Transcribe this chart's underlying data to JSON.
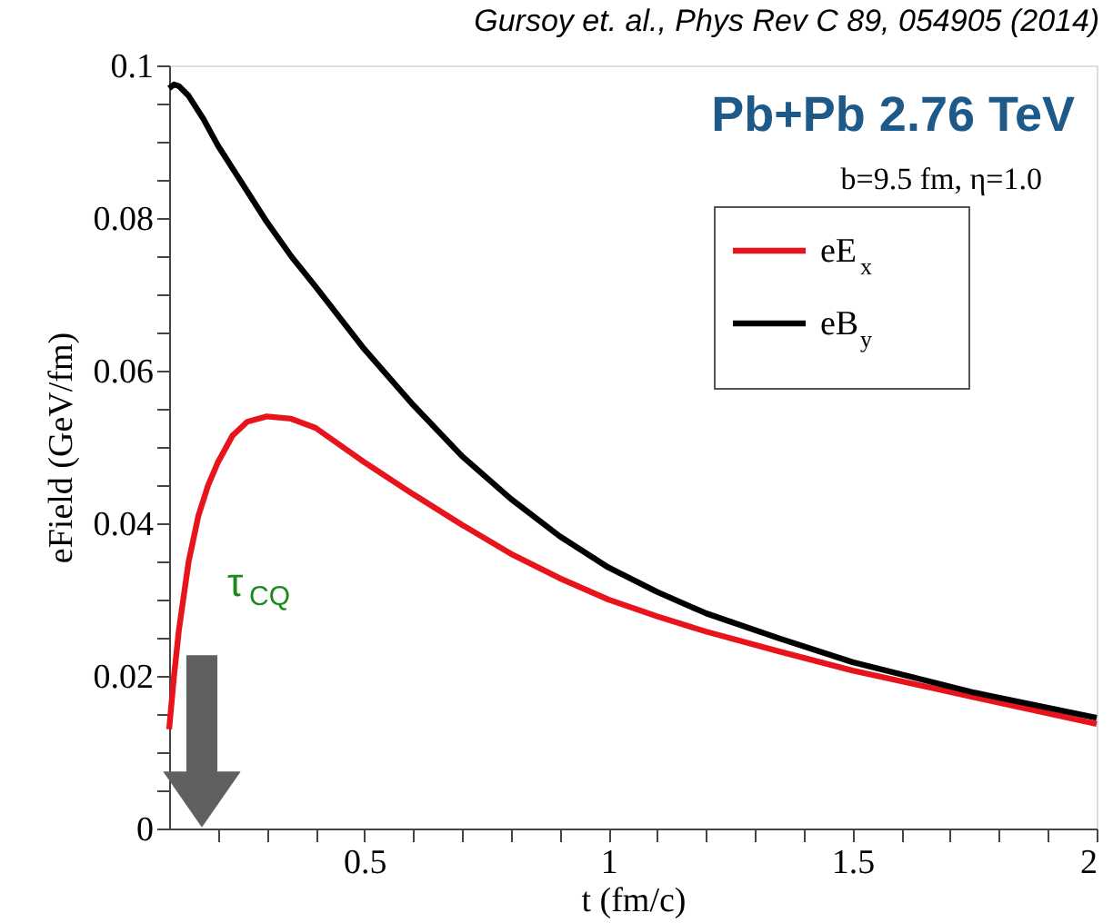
{
  "chart_data": {
    "type": "line",
    "title": "Gursoy et. al., Phys Rev C 89, 054905 (2014)",
    "xlabel": "t (fm/c)",
    "ylabel": "eField (GeV/fm)",
    "xlim": [
      0.1,
      2
    ],
    "ylim": [
      0,
      0.1
    ],
    "xticks": [
      {
        "value": 0.2,
        "label": null
      },
      {
        "value": 0.3,
        "label": null
      },
      {
        "value": 0.4,
        "label": null
      },
      0.5,
      {
        "value": 0.6,
        "label": null
      },
      {
        "value": 0.7,
        "label": null
      },
      {
        "value": 0.8,
        "label": null
      },
      {
        "value": 0.9,
        "label": null
      },
      1,
      {
        "value": 1.1,
        "label": null
      },
      {
        "value": 1.2,
        "label": null
      },
      {
        "value": 1.3,
        "label": null
      },
      {
        "value": 1.4,
        "label": null
      },
      1.5,
      {
        "value": 1.6,
        "label": null
      },
      {
        "value": 1.7,
        "label": null
      },
      {
        "value": 1.8,
        "label": null
      },
      {
        "value": 1.9,
        "label": null
      },
      2
    ],
    "yticks": [
      0,
      {
        "value": 0.005,
        "label": null
      },
      {
        "value": 0.01,
        "label": null
      },
      {
        "value": 0.015,
        "label": null
      },
      0.02,
      {
        "value": 0.025,
        "label": null
      },
      {
        "value": 0.03,
        "label": null
      },
      {
        "value": 0.035,
        "label": null
      },
      0.04,
      {
        "value": 0.045,
        "label": null
      },
      {
        "value": 0.05,
        "label": null
      },
      {
        "value": 0.055,
        "label": null
      },
      0.06,
      {
        "value": 0.065,
        "label": null
      },
      {
        "value": 0.07,
        "label": null
      },
      {
        "value": 0.075,
        "label": null
      },
      0.08,
      {
        "value": 0.085,
        "label": null
      },
      {
        "value": 0.09,
        "label": null
      },
      {
        "value": 0.095,
        "label": null
      },
      0.1
    ],
    "grid": false,
    "legend": "top right",
    "marker": "none",
    "line_style": "solid",
    "series": [
      {
        "name": "eE$_{x}$",
        "color": "#e8141c",
        "x": [
          0.1,
          0.11,
          0.12,
          0.14,
          0.16,
          0.18,
          0.2,
          0.23,
          0.26,
          0.3,
          0.35,
          0.4,
          0.5,
          0.6,
          0.7,
          0.8,
          0.9,
          1.0,
          1.1,
          1.2,
          1.35,
          1.5,
          1.75,
          2.0
        ],
        "values": [
          0.013,
          0.02,
          0.026,
          0.035,
          0.041,
          0.045,
          0.048,
          0.0515,
          0.0533,
          0.054,
          0.0537,
          0.0525,
          0.048,
          0.0438,
          0.0398,
          0.036,
          0.0328,
          0.03,
          0.0278,
          0.0258,
          0.0232,
          0.0207,
          0.0172,
          0.0137
        ]
      },
      {
        "name": "eB$_{y}$",
        "color": "#000000",
        "x": [
          0.1,
          0.11,
          0.12,
          0.14,
          0.17,
          0.2,
          0.25,
          0.3,
          0.35,
          0.4,
          0.5,
          0.6,
          0.7,
          0.8,
          0.9,
          1.0,
          1.1,
          1.2,
          1.35,
          1.5,
          1.75,
          2.0
        ],
        "values": [
          0.097,
          0.0975,
          0.0973,
          0.096,
          0.093,
          0.0895,
          0.0845,
          0.0795,
          0.075,
          0.071,
          0.0628,
          0.0555,
          0.0488,
          0.0432,
          0.0383,
          0.0342,
          0.031,
          0.0282,
          0.0249,
          0.0218,
          0.0178,
          0.0145
        ]
      }
    ],
    "annotations": [
      "Pb+Pb 2.76 TeV",
      "b=9.5 fm,   η=1.0",
      "τ$_{CQ}$"
    ]
  }
}
